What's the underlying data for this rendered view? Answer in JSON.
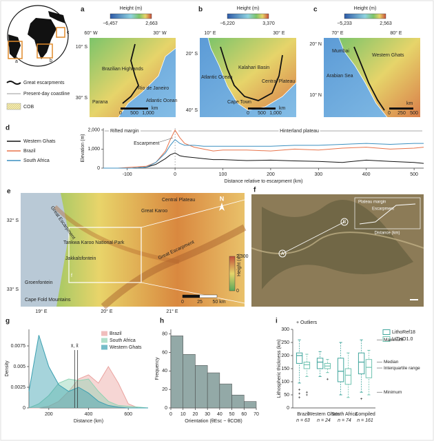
{
  "panels": {
    "globe": {
      "boxes": [
        "a",
        "b",
        "c"
      ]
    },
    "legend": {
      "items": [
        "Great escarpments",
        "Present-day coastline",
        "COB"
      ]
    },
    "a": {
      "letter": "a",
      "colorbar_title": "Height (m)",
      "colorbar_min": "−6,457",
      "colorbar_max": "2,663",
      "lon": [
        "60° W",
        "30° W"
      ],
      "lat": [
        "10° S",
        "30° S"
      ],
      "places": [
        "Brazilian Highlands",
        "Rio de Janeiro",
        "Atlantic Ocean",
        "Parana"
      ],
      "scale": [
        "0",
        "500",
        "1,000",
        "km"
      ]
    },
    "b": {
      "letter": "b",
      "colorbar_title": "Height (m)",
      "colorbar_min": "−6,220",
      "colorbar_max": "3,370",
      "lon": [
        "10° E",
        "30° E"
      ],
      "lat": [
        "20° S",
        "40° S"
      ],
      "places": [
        "Atlantic Ocean",
        "Kalahari Basin",
        "Central Plateau",
        "Cape Town"
      ],
      "scale": [
        "0",
        "500",
        "1,000",
        "km"
      ]
    },
    "c": {
      "letter": "c",
      "colorbar_title": "Height (m)",
      "colorbar_min": "−5,233",
      "colorbar_max": "2,563",
      "lon": [
        "70° E",
        "80° E"
      ],
      "lat": [
        "20° N",
        "10° N"
      ],
      "places": [
        "Mumbai",
        "Western Ghats",
        "Arabian Sea"
      ],
      "scale": [
        "0",
        "250",
        "500",
        "km"
      ]
    },
    "e": {
      "letter": "e",
      "places": [
        "Central Plateau",
        "Great Karoo",
        "Great Escarpment",
        "Great Escarpment",
        "Tankwa Karoo National Park",
        "Jakkalsfontein",
        "Groenfontein",
        "Cape Fold Mountains",
        "f"
      ],
      "lat": [
        "32° S",
        "33° S"
      ],
      "lon": [
        "19° E",
        "20° E",
        "21° E"
      ],
      "colorbar_title": "Height (m)",
      "colorbar_max": "2,300",
      "colorbar_min": "0",
      "scale": [
        "0",
        "25",
        "50 km"
      ],
      "north": "N"
    },
    "f": {
      "letter": "f",
      "points": [
        "A",
        "B"
      ],
      "inset": {
        "labels": [
          "Plateau margin",
          "Escarpment"
        ],
        "xlabel": "Distance (km)"
      }
    }
  },
  "chart_data": [
    {
      "type": "line",
      "panel": "d",
      "xlabel": "Distance relative to escarpment (km)",
      "ylabel": "Elevation (m)",
      "annotations": [
        "Rifted margin",
        "Hinterland plateau",
        "Escarpment"
      ],
      "x": [
        -150,
        -120,
        -90,
        -60,
        -40,
        -20,
        -10,
        0,
        10,
        20,
        40,
        60,
        80,
        100,
        150,
        200,
        250,
        300,
        350,
        400,
        450,
        500,
        520
      ],
      "series": [
        {
          "name": "Western Ghats",
          "color": "#111111",
          "values": [
            0,
            0,
            0,
            50,
            200,
            500,
            700,
            800,
            650,
            600,
            550,
            500,
            450,
            450,
            400,
            420,
            380,
            350,
            300,
            420,
            350,
            300,
            250
          ]
        },
        {
          "name": "Brazil",
          "color": "#e8734a",
          "values": [
            0,
            0,
            50,
            100,
            300,
            900,
            1500,
            2000,
            1600,
            1300,
            1100,
            1000,
            900,
            950,
            950,
            900,
            1000,
            950,
            1050,
            1100,
            1000,
            1050,
            1100
          ]
        },
        {
          "name": "South Africa",
          "color": "#3a8fc0",
          "values": [
            0,
            0,
            0,
            50,
            300,
            800,
            1200,
            1500,
            1300,
            1200,
            1200,
            1150,
            1150,
            1150,
            1150,
            1150,
            1200,
            1200,
            1250,
            1300,
            1250,
            1300,
            1300
          ]
        }
      ],
      "xlim": [
        -150,
        520
      ],
      "xticks": [
        -100,
        0,
        100,
        200,
        300,
        400,
        500
      ],
      "ylim": [
        0,
        2100
      ],
      "yticks": [
        0,
        {
          "value": 1000,
          "label": "1,000"
        },
        {
          "value": 2000,
          "label": "2,000"
        }
      ]
    },
    {
      "type": "area",
      "panel": "g",
      "xlabel": "Distance (km)",
      "ylabel": "Density",
      "x": [
        100,
        150,
        200,
        250,
        300,
        350,
        400,
        450,
        500,
        550,
        600,
        650,
        700
      ],
      "series": [
        {
          "name": "Brazil",
          "color": "#eaa3a0",
          "values": [
            0,
            0,
            0.0002,
            0.0008,
            0.002,
            0.0035,
            0.004,
            0.003,
            0.005,
            0.003,
            0.0005,
            0,
            0
          ]
        },
        {
          "name": "South Africa",
          "color": "#8fd3b4",
          "values": [
            0,
            0.0005,
            0.0015,
            0.003,
            0.0035,
            0.0033,
            0.0035,
            0.002,
            0.0008,
            0.0003,
            0.0002,
            0.0001,
            0
          ]
        },
        {
          "name": "Western Ghats",
          "color": "#3a9fb0",
          "values": [
            0.002,
            0.0088,
            0.005,
            0.0028,
            0.002,
            0.0025,
            0.0018,
            0.0008,
            0.0003,
            0.0001,
            0,
            0,
            0
          ]
        }
      ],
      "markers": {
        "label": "x̄, x̃",
        "x": [
          330,
          345
        ]
      },
      "xlim": [
        100,
        700
      ],
      "xticks": [
        200,
        400,
        600
      ],
      "ylim": [
        0,
        0.0095
      ],
      "yticks": [
        0,
        0.0025,
        0.005,
        0.0075
      ]
    },
    {
      "type": "histogram",
      "panel": "h",
      "xlabel": "Orientation (θEsc − θCOB)",
      "ylabel": "Frequency",
      "color": "#93a9a7",
      "bins": [
        0,
        10,
        20,
        30,
        40,
        50,
        60,
        70
      ],
      "values": [
        78,
        58,
        46,
        38,
        26,
        14,
        7
      ],
      "xlim": [
        0,
        70
      ],
      "xticks": [
        0,
        10,
        20,
        30,
        40,
        50,
        60,
        70
      ],
      "ylim": [
        0,
        85
      ],
      "yticks": [
        0,
        20,
        40,
        60,
        80
      ]
    },
    {
      "type": "box",
      "panel": "i",
      "ylabel": "Lithospheric thickness (km)",
      "categories": [
        "Brazil",
        "Western Ghats",
        "South Africa",
        "Compiled"
      ],
      "n_labels": [
        "n = 63",
        "n = 24",
        "n = 74",
        "n = 161"
      ],
      "annotations": [
        "+ Outliers",
        "Maximum",
        "Median",
        "Interquartile range",
        "Minimum"
      ],
      "series": [
        {
          "name": "LithoRef18",
          "color": "#3fa59c",
          "boxes": [
            {
              "min": 95,
              "q1": 170,
              "median": 200,
              "q3": 210,
              "max": 260,
              "outliers": [
                40,
                55,
                70
              ]
            },
            {
              "min": 120,
              "q1": 150,
              "median": 175,
              "q3": 190,
              "max": 215,
              "outliers": []
            },
            {
              "min": 50,
              "q1": 100,
              "median": 140,
              "q3": 190,
              "max": 250,
              "outliers": []
            },
            {
              "min": 60,
              "q1": 130,
              "median": 175,
              "q3": 210,
              "max": 260,
              "outliers": [
                35
              ]
            }
          ]
        },
        {
          "name": "LITHO1.0",
          "color": "#6fc3b0",
          "boxes": [
            {
              "min": 120,
              "q1": 150,
              "median": 165,
              "q3": 175,
              "max": 205,
              "outliers": [
                50,
                60
              ]
            },
            {
              "min": 135,
              "q1": 150,
              "median": 160,
              "q3": 170,
              "max": 185,
              "outliers": [
                110
              ]
            },
            {
              "min": 40,
              "q1": 90,
              "median": 125,
              "q3": 150,
              "max": 210,
              "outliers": []
            },
            {
              "min": 50,
              "q1": 115,
              "median": 155,
              "q3": 185,
              "max": 220,
              "outliers": []
            }
          ]
        }
      ],
      "ylim": [
        0,
        300
      ],
      "yticks": [
        0,
        50,
        100,
        150,
        200,
        250,
        300
      ]
    }
  ]
}
